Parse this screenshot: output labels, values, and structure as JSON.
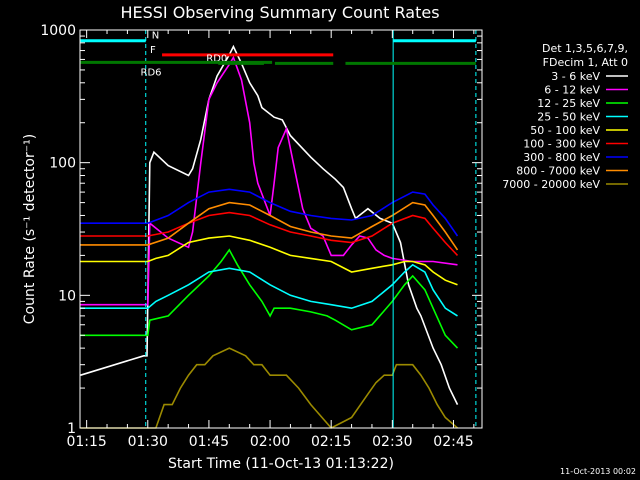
{
  "chart_data": {
    "type": "line",
    "title": "HESSI Observing Summary Count Rates",
    "xlabel": "Start Time (11-Oct-13 01:13:22)",
    "ylabel": "Count Rate (s⁻¹ detector⁻¹)",
    "yscale": "log",
    "ylim": [
      1,
      1000
    ],
    "xlim": [
      73.37,
      172
    ],
    "x_unit": "minutes after 00:00 UT, 11-Oct-13",
    "x_ticks": [
      {
        "x": 75,
        "label": "01:15"
      },
      {
        "x": 90,
        "label": "01:30"
      },
      {
        "x": 105,
        "label": "01:45"
      },
      {
        "x": 120,
        "label": "02:00"
      },
      {
        "x": 135,
        "label": "02:15"
      },
      {
        "x": 150,
        "label": "02:30"
      },
      {
        "x": 165,
        "label": "02:45"
      }
    ],
    "y_ticks": [
      {
        "y": 1,
        "label": "1"
      },
      {
        "y": 10,
        "label": "10"
      },
      {
        "y": 100,
        "label": "100"
      },
      {
        "y": 1000,
        "label": "1000"
      }
    ],
    "legend_position": "right",
    "legend_header": [
      "Det 1,3,5,6,7,9,",
      "FDecim 1, Att 0"
    ],
    "series": [
      {
        "name": "3 - 6 keV",
        "color": "#ffffff",
        "x": [
          73.5,
          89,
          89.8,
          90.5,
          91.5,
          95,
          100,
          101,
          103,
          105,
          107,
          110,
          111,
          113,
          115,
          117,
          118,
          121,
          123,
          125,
          130,
          133,
          136,
          138,
          140,
          141,
          144,
          147,
          150,
          152,
          154,
          156,
          157,
          160,
          162,
          164,
          166
        ],
        "y": [
          2.5,
          3.5,
          3.5,
          100,
          120,
          95,
          80,
          90,
          150,
          300,
          450,
          650,
          750,
          560,
          400,
          320,
          260,
          220,
          210,
          160,
          110,
          90,
          75,
          65,
          45,
          38,
          45,
          38,
          35,
          25,
          12,
          8,
          7,
          4,
          3,
          2,
          1.5
        ]
      },
      {
        "name": "6 - 12 keV",
        "color": "#ff00ff",
        "x": [
          73.5,
          89,
          90,
          90.5,
          95,
          100,
          101,
          103,
          105,
          107,
          110,
          111,
          113,
          115,
          116,
          117,
          120,
          121,
          122,
          124,
          126,
          128,
          130,
          133,
          135,
          138,
          140,
          142,
          144,
          146,
          148,
          150,
          155,
          160,
          166
        ],
        "y": [
          8.5,
          8.5,
          8.5,
          35,
          27,
          23,
          30,
          100,
          300,
          400,
          550,
          620,
          420,
          200,
          100,
          70,
          40,
          70,
          130,
          180,
          90,
          45,
          32,
          28,
          20,
          20,
          24,
          28,
          27,
          22,
          20,
          19,
          18,
          18,
          17
        ]
      },
      {
        "name": "12 - 25 keV",
        "color": "#00ff00",
        "x": [
          73.5,
          89,
          90,
          90.5,
          95,
          100,
          105,
          108,
          110,
          112,
          115,
          118,
          120,
          121,
          125,
          130,
          134,
          136,
          140,
          145,
          150,
          153,
          155,
          158,
          160,
          163,
          166
        ],
        "y": [
          5,
          5,
          5,
          6.5,
          7,
          10,
          14,
          18,
          22,
          17,
          12,
          9,
          7,
          8,
          8,
          7.5,
          7,
          6.5,
          5.5,
          6,
          9,
          12,
          14,
          11,
          8,
          5,
          4
        ]
      },
      {
        "name": "25 - 50 keV",
        "color": "#00ffff",
        "x": [
          73.5,
          89,
          90,
          92,
          95,
          100,
          105,
          110,
          115,
          120,
          125,
          130,
          135,
          140,
          145,
          150,
          153,
          155,
          158,
          160,
          163,
          166
        ],
        "y": [
          8,
          8,
          8,
          9,
          10,
          12,
          15,
          16,
          15,
          12,
          10,
          9,
          8.5,
          8,
          9,
          12,
          15,
          17,
          15,
          11,
          8,
          7
        ]
      },
      {
        "name": "50 - 100 keV",
        "color": "#ffff00",
        "x": [
          73.5,
          89,
          90,
          92,
          95,
          100,
          105,
          110,
          115,
          120,
          125,
          130,
          135,
          140,
          145,
          150,
          153,
          155,
          158,
          160,
          163,
          166
        ],
        "y": [
          18,
          18,
          18,
          19,
          20,
          25,
          27,
          28,
          26,
          23,
          20,
          19,
          18,
          15,
          16,
          17,
          18,
          18,
          17,
          15,
          13,
          12
        ]
      },
      {
        "name": "100 - 300 keV",
        "color": "#ff0000",
        "x": [
          73.5,
          89,
          90,
          95,
          100,
          105,
          110,
          115,
          120,
          125,
          130,
          135,
          140,
          145,
          150,
          155,
          158,
          160,
          163,
          166
        ],
        "y": [
          28,
          28,
          28,
          30,
          35,
          40,
          42,
          40,
          34,
          30,
          28,
          26,
          25,
          28,
          35,
          40,
          38,
          32,
          25,
          20
        ]
      },
      {
        "name": "300 - 800 keV",
        "color": "#0000ff",
        "x": [
          73.5,
          89,
          90,
          95,
          100,
          105,
          110,
          115,
          120,
          125,
          130,
          135,
          140,
          145,
          150,
          155,
          158,
          160,
          163,
          166
        ],
        "y": [
          35,
          35,
          35,
          40,
          50,
          60,
          63,
          60,
          50,
          43,
          40,
          38,
          37,
          40,
          50,
          60,
          58,
          48,
          38,
          28
        ]
      },
      {
        "name": "800 - 7000 keV",
        "color": "#ff8c00",
        "x": [
          73.5,
          89,
          90,
          95,
          100,
          105,
          110,
          115,
          120,
          125,
          130,
          135,
          140,
          145,
          150,
          155,
          158,
          160,
          163,
          166
        ],
        "y": [
          24,
          24,
          24,
          27,
          35,
          45,
          50,
          48,
          40,
          33,
          30,
          28,
          27,
          33,
          40,
          50,
          48,
          40,
          30,
          22
        ]
      },
      {
        "name": "7000 - 20000 keV",
        "color": "#9b8a00",
        "x": [
          73.5,
          89,
          89.5,
          92,
          94,
          96,
          98,
          100,
          102,
          104,
          106,
          110,
          114,
          116,
          118,
          120,
          124,
          127,
          130,
          135,
          140,
          144,
          146,
          148,
          150,
          151,
          153,
          155,
          157,
          159,
          161,
          163,
          166
        ],
        "y": [
          1,
          1,
          1,
          1,
          1.5,
          1.5,
          2,
          2.5,
          3,
          3,
          3.5,
          4,
          3.5,
          3,
          3,
          2.5,
          2.5,
          2,
          1.5,
          1,
          1.2,
          1.8,
          2.2,
          2.5,
          2.5,
          3,
          3,
          3,
          2.5,
          2,
          1.5,
          1.2,
          1
        ]
      }
    ],
    "vertical_lines": [
      {
        "x": 89.5,
        "style": "dashed",
        "color": "#00ffff"
      },
      {
        "x": 150.2,
        "style": "solid",
        "color": "#00ffff"
      },
      {
        "x": 170.5,
        "style": "dashed",
        "color": "#00ffff"
      }
    ],
    "annotations": [
      {
        "label": "N",
        "color": "#00ffff",
        "bars": [
          [
            73.5,
            89.5
          ],
          [
            150.2,
            170.5
          ]
        ],
        "y": 830
      },
      {
        "label": "F",
        "color": "#ff0000",
        "bars": [
          [
            93.5,
            135.5
          ]
        ],
        "y": 650
      },
      {
        "label": "RD0",
        "color": "#007700",
        "bars": [
          [
            107.3,
            118.5
          ],
          [
            121.2,
            135.5
          ],
          [
            138.5,
            170.5
          ]
        ],
        "y": 560
      },
      {
        "label": "RD6",
        "color": "#007700",
        "bars": [
          [
            73.5,
            120.5
          ]
        ],
        "y": 570
      }
    ]
  },
  "footer_timestamp": "11-Oct-2013 00:02"
}
